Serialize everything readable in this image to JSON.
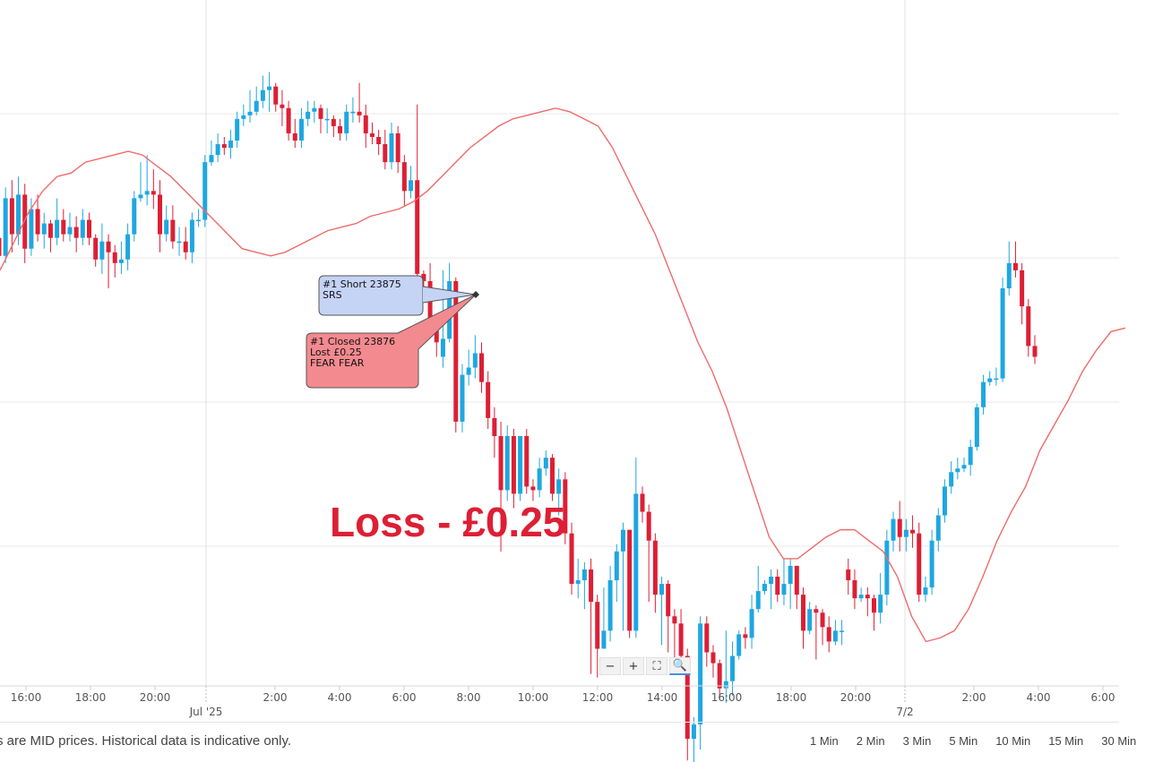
{
  "chart_data": {
    "type": "candlestick",
    "overlay": "moving-average line",
    "colors": {
      "up": "#1ea7e1",
      "down": "#dd1f35",
      "ma_line": "#f06a6a",
      "grid": "#e8e8e8"
    },
    "x_tick_labels": [
      "16:00",
      "18:00",
      "20:00",
      "2:00",
      "4:00",
      "6:00",
      "8:00",
      "10:00",
      "12:00",
      "14:00",
      "16:00",
      "18:00",
      "20:00",
      "2:00",
      "4:00",
      "6:00"
    ],
    "date_labels": [
      "Jul '25",
      "7/2"
    ],
    "candles": [
      [
        23909,
        23904,
        23916,
        23896
      ],
      [
        23904,
        23920,
        23923,
        23902
      ],
      [
        23920,
        23910,
        23925,
        23905
      ],
      [
        23910,
        23921,
        23926,
        23907
      ],
      [
        23921,
        23906,
        23924,
        23902
      ],
      [
        23906,
        23917,
        23920,
        23904
      ],
      [
        23917,
        23910,
        23921,
        23908
      ],
      [
        23910,
        23913,
        23916,
        23906
      ],
      [
        23913,
        23909,
        23914,
        23905
      ],
      [
        23909,
        23914,
        23920,
        23907
      ],
      [
        23914,
        23910,
        23917,
        23908
      ],
      [
        23910,
        23912,
        23916,
        23908
      ],
      [
        23912,
        23909,
        23915,
        23905
      ],
      [
        23909,
        23914,
        23917,
        23907
      ],
      [
        23914,
        23909,
        23916,
        23907
      ],
      [
        23909,
        23903,
        23910,
        23901
      ],
      [
        23903,
        23908,
        23913,
        23899
      ],
      [
        23908,
        23905,
        23910,
        23895
      ],
      [
        23905,
        23902,
        23907,
        23898
      ],
      [
        23902,
        23903,
        23908,
        23899
      ],
      [
        23903,
        23910,
        23913,
        23900
      ],
      [
        23910,
        23920,
        23922,
        23908
      ],
      [
        23920,
        23921,
        23930,
        23919
      ],
      [
        23921,
        23922,
        23932,
        23918
      ],
      [
        23922,
        23921,
        23928,
        23917
      ],
      [
        23921,
        23910,
        23925,
        23905
      ],
      [
        23910,
        23914,
        23918,
        23908
      ],
      [
        23914,
        23908,
        23918,
        23906
      ],
      [
        23908,
        23908,
        23912,
        23904
      ],
      [
        23908,
        23905,
        23912,
        23903
      ],
      [
        23905,
        23914,
        23916,
        23902
      ],
      [
        23914,
        23914,
        23917,
        23912
      ],
      [
        23914,
        23930,
        23932,
        23912
      ],
      [
        23930,
        23932,
        23936,
        23929
      ],
      [
        23932,
        23935,
        23938,
        23930
      ],
      [
        23935,
        23934,
        23937,
        23932
      ],
      [
        23934,
        23936,
        23939,
        23931
      ],
      [
        23936,
        23942,
        23944,
        23934
      ],
      [
        23942,
        23943,
        23946,
        23940
      ],
      [
        23943,
        23944,
        23950,
        23941
      ],
      [
        23944,
        23947,
        23951,
        23943
      ],
      [
        23947,
        23950,
        23954,
        23945
      ],
      [
        23950,
        23951,
        23955,
        23944
      ],
      [
        23951,
        23946,
        23952,
        23944
      ],
      [
        23946,
        23945,
        23950,
        23940
      ],
      [
        23945,
        23938,
        23947,
        23936
      ],
      [
        23938,
        23936,
        23942,
        23934
      ],
      [
        23936,
        23942,
        23945,
        23934
      ],
      [
        23942,
        23944,
        23947,
        23940
      ],
      [
        23944,
        23945,
        23947,
        23941
      ],
      [
        23945,
        23942,
        23946,
        23938
      ],
      [
        23942,
        23942,
        23945,
        23938
      ],
      [
        23942,
        23940,
        23943,
        23937
      ],
      [
        23940,
        23938,
        23942,
        23936
      ],
      [
        23938,
        23944,
        23946,
        23936
      ],
      [
        23944,
        23944,
        23948,
        23941
      ],
      [
        23944,
        23943,
        23952,
        23941
      ],
      [
        23943,
        23938,
        23946,
        23934
      ],
      [
        23938,
        23937,
        23941,
        23935
      ],
      [
        23937,
        23935,
        23939,
        23932
      ],
      [
        23935,
        23930,
        23939,
        23928
      ],
      [
        23930,
        23938,
        23941,
        23928
      ],
      [
        23938,
        23930,
        23940,
        23927
      ],
      [
        23930,
        23922,
        23932,
        23918
      ],
      [
        23922,
        23925,
        23929,
        23920
      ],
      [
        23925,
        23899,
        23946,
        23893
      ],
      [
        23899,
        23897,
        23900,
        23892
      ],
      [
        23897,
        23884,
        23902,
        23882
      ],
      [
        23884,
        23880,
        23886,
        23876
      ],
      [
        23876,
        23881,
        23900,
        23873
      ],
      [
        23881,
        23897,
        23902,
        23880
      ],
      [
        23897,
        23858,
        23898,
        23855
      ],
      [
        23858,
        23871,
        23874,
        23855
      ],
      [
        23871,
        23873,
        23878,
        23868
      ],
      [
        23873,
        23877,
        23882,
        23870
      ],
      [
        23877,
        23869,
        23880,
        23866
      ],
      [
        23869,
        23859,
        23872,
        23856
      ],
      [
        23859,
        23854,
        23862,
        23848
      ],
      [
        23854,
        23839,
        23858,
        23822
      ],
      [
        23839,
        23854,
        23857,
        23836
      ],
      [
        23854,
        23838,
        23856,
        23834
      ],
      [
        23838,
        23854,
        23854,
        23836
      ],
      [
        23854,
        23840,
        23856,
        23838
      ],
      [
        23840,
        23839,
        23842,
        23836
      ],
      [
        23839,
        23845,
        23848,
        23837
      ],
      [
        23845,
        23848,
        23850,
        23843
      ],
      [
        23848,
        23838,
        23849,
        23836
      ],
      [
        23838,
        23842,
        23845,
        23832
      ],
      [
        23842,
        23827,
        23844,
        23824
      ],
      [
        23827,
        23813,
        23830,
        23810
      ],
      [
        23813,
        23814,
        23820,
        23809
      ],
      [
        23814,
        23817,
        23819,
        23806
      ],
      [
        23817,
        23808,
        23820,
        23788
      ],
      [
        23808,
        23795,
        23810,
        23787
      ],
      [
        23795,
        23800,
        23812,
        23795
      ],
      [
        23800,
        23814,
        23818,
        23797
      ],
      [
        23814,
        23822,
        23824,
        23808
      ],
      [
        23822,
        23828,
        23830,
        23800
      ],
      [
        23828,
        23800,
        23828,
        23798
      ],
      [
        23800,
        23838,
        23848,
        23798
      ],
      [
        23838,
        23833,
        23840,
        23830
      ],
      [
        23833,
        23825,
        23835,
        23808
      ],
      [
        23825,
        23810,
        23827,
        23805
      ],
      [
        23810,
        23813,
        23815,
        23796
      ],
      [
        23813,
        23804,
        23814,
        23794
      ],
      [
        23804,
        23802,
        23806,
        23791
      ],
      [
        23802,
        23793,
        23806,
        23788
      ],
      [
        23793,
        23770,
        23795,
        23764
      ],
      [
        23770,
        23774,
        23776,
        23762
      ],
      [
        23774,
        23802,
        23804,
        23767
      ],
      [
        23802,
        23794,
        23804,
        23790
      ],
      [
        23794,
        23791,
        23796,
        23787
      ],
      [
        23791,
        23784,
        23792,
        23781
      ],
      [
        23784,
        23786,
        23800,
        23780
      ],
      [
        23786,
        23793,
        23797,
        23782
      ],
      [
        23793,
        23799,
        23800,
        23792
      ],
      [
        23799,
        23798,
        23801,
        23795
      ],
      [
        23798,
        23806,
        23810,
        23795
      ],
      [
        23806,
        23811,
        23818,
        23805
      ],
      [
        23811,
        23813,
        23814,
        23810
      ],
      [
        23813,
        23815,
        23817,
        23806
      ],
      [
        23815,
        23810,
        23817,
        23808
      ],
      [
        23810,
        23813,
        23820,
        23807
      ],
      [
        23813,
        23818,
        23820,
        23806
      ],
      [
        23818,
        23810,
        23818,
        23806
      ],
      [
        23810,
        23800,
        23812,
        23795
      ],
      [
        23800,
        23806,
        23808,
        23799
      ],
      [
        23806,
        23805,
        23807,
        23792
      ],
      [
        23805,
        23801,
        23806,
        23796
      ],
      [
        23801,
        23797,
        23804,
        23794
      ],
      [
        23797,
        23800,
        23803,
        23796
      ],
      [
        23800,
        23800,
        23803,
        23796
      ],
      [
        23817,
        23814,
        23820,
        23810
      ],
      [
        23814,
        23809,
        23817,
        23806
      ],
      [
        23809,
        23810,
        23812,
        23808
      ],
      [
        23810,
        23809,
        23812,
        23804
      ],
      [
        23809,
        23805,
        23810,
        23800
      ],
      [
        23805,
        23810,
        23816,
        23802
      ],
      [
        23810,
        23825,
        23828,
        23807
      ],
      [
        23825,
        23831,
        23833,
        23822
      ],
      [
        23831,
        23826,
        23836,
        23822
      ],
      [
        23826,
        23828,
        23831,
        23822
      ],
      [
        23828,
        23827,
        23832,
        23823
      ],
      [
        23827,
        23810,
        23830,
        23808
      ],
      [
        23810,
        23812,
        23815,
        23808
      ],
      [
        23812,
        23825,
        23828,
        23810
      ],
      [
        23825,
        23832,
        23834,
        23822
      ],
      [
        23832,
        23840,
        23842,
        23830
      ],
      [
        23840,
        23844,
        23847,
        23838
      ],
      [
        23844,
        23845,
        23848,
        23842
      ],
      [
        23845,
        23846,
        23848,
        23844
      ],
      [
        23846,
        23851,
        23853,
        23843
      ],
      [
        23851,
        23862,
        23863,
        23850
      ],
      [
        23862,
        23869,
        23871,
        23860
      ],
      [
        23869,
        23870,
        23872,
        23868
      ],
      [
        23870,
        23870,
        23873,
        23868
      ],
      [
        23870,
        23895,
        23898,
        23869
      ],
      [
        23895,
        23902,
        23908,
        23893
      ],
      [
        23902,
        23900,
        23908,
        23898
      ],
      [
        23900,
        23890,
        23902,
        23885
      ],
      [
        23890,
        23879,
        23892,
        23876
      ],
      [
        23879,
        23876,
        23882,
        23874
      ]
    ],
    "ma_line": [
      23900,
      23908,
      23916,
      23922,
      23926,
      23927,
      23930,
      23931,
      23932,
      23933,
      23932,
      23929,
      23926,
      23922,
      23918,
      23914,
      23910,
      23906,
      23905,
      23904,
      23905,
      23907,
      23909,
      23911,
      23912,
      23913,
      23915,
      23916,
      23917,
      23919,
      23922,
      23926,
      23930,
      23934,
      23937,
      23940,
      23942,
      23943,
      23944,
      23945,
      23944,
      23942,
      23940,
      23934,
      23926,
      23918,
      23910,
      23900,
      23890,
      23880,
      23872,
      23862,
      23850,
      23838,
      23826,
      23820,
      23820,
      23823,
      23826,
      23828,
      23828,
      23825,
      23822,
      23815,
      23804,
      23797,
      23798,
      23800,
      23806,
      23815,
      23825,
      23833,
      23840,
      23850,
      23857,
      23864,
      23872,
      23878,
      23883,
      23884
    ],
    "annotations": [
      {
        "lines": [
          "#1 Short 23875",
          "SRS"
        ],
        "kind": "open"
      },
      {
        "lines": [
          "#1 Closed 23876",
          "Lost £0.25",
          "FEAR FEAR"
        ],
        "kind": "close"
      }
    ],
    "result_text": "Loss - £0.25"
  },
  "zoom_controls": [
    {
      "icon": "zoom-out-icon",
      "glyph": "−"
    },
    {
      "icon": "zoom-in-icon",
      "glyph": "+"
    },
    {
      "icon": "fit-screen-icon",
      "glyph": "⛶"
    },
    {
      "icon": "zoom-reset-icon",
      "glyph": "🔍"
    }
  ],
  "footer": {
    "disclaimer": "s are MID prices. Historical data is indicative only.",
    "intervals": [
      "1 Min",
      "2 Min",
      "3 Min",
      "5 Min",
      "10 Min",
      "15 Min",
      "30 Min"
    ]
  }
}
